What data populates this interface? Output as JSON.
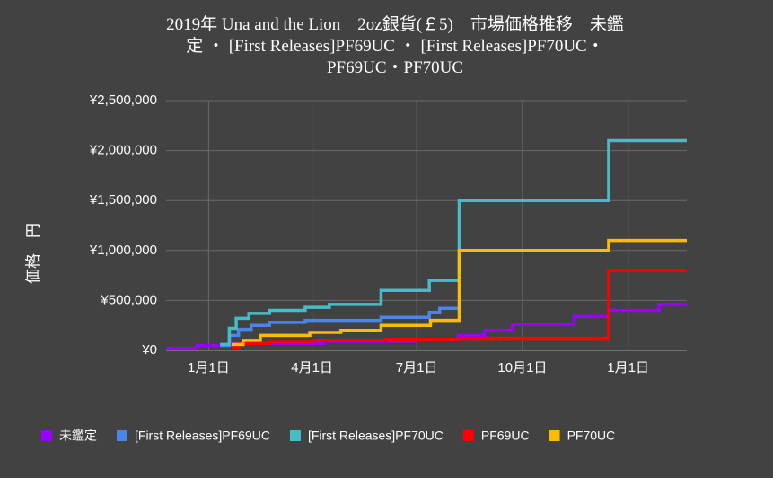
{
  "chart_data": {
    "type": "line",
    "step": true,
    "title": "2019年 Una and the Lion　2oz銀貨(￡5)　市場価格推移　未鑑定 ・ [First Releases]PF69UC ・ [First Releases]PF70UC・PF69UC・PF70UC",
    "y_label": "価格　円",
    "xlim": [
      -37,
      416
    ],
    "xticks": [
      {
        "value": 0,
        "label": "1月1日"
      },
      {
        "value": 90,
        "label": "4月1日"
      },
      {
        "value": 181,
        "label": "7月1日"
      },
      {
        "value": 273,
        "label": "10月1日"
      },
      {
        "value": 365,
        "label": "1月1日"
      }
    ],
    "ylim": [
      0,
      2500000
    ],
    "yticks": [
      {
        "value": 0,
        "label": "¥0"
      },
      {
        "value": 500000,
        "label": "¥500,000"
      },
      {
        "value": 1000000,
        "label": "¥1,000,000"
      },
      {
        "value": 1500000,
        "label": "¥1,500,000"
      },
      {
        "value": 2000000,
        "label": "¥2,000,000"
      },
      {
        "value": 2500000,
        "label": "¥2,500,000"
      }
    ],
    "grid": true,
    "legend": "bottom",
    "series": [
      {
        "name": "未鑑定",
        "color": "#9900ff",
        "x": [
          -37,
          -10,
          20,
          100,
          180,
          217,
          240,
          264,
          318,
          348,
          392,
          416
        ],
        "values": [
          20000,
          50000,
          70000,
          90000,
          110000,
          150000,
          200000,
          260000,
          340000,
          400000,
          460000,
          460000
        ]
      },
      {
        "name": "[First Releases]PF69UC",
        "color": "#4a86e8",
        "x": [
          10,
          18,
          26,
          37,
          53,
          84,
          150,
          192,
          201,
          217
        ],
        "values": [
          50000,
          150000,
          210000,
          250000,
          280000,
          300000,
          330000,
          380000,
          420000,
          420000
        ]
      },
      {
        "name": "[First Releases]PF70UC",
        "color": "#46bdc6",
        "x": [
          10,
          18,
          24,
          35,
          53,
          84,
          105,
          150,
          192,
          218,
          348,
          416
        ],
        "values": [
          60000,
          220000,
          320000,
          370000,
          400000,
          430000,
          460000,
          600000,
          700000,
          1500000,
          2100000,
          2100000
        ]
      },
      {
        "name": "PF69UC",
        "color": "#ff0000",
        "x": [
          20,
          26,
          53,
          92,
          155,
          218,
          348,
          416
        ],
        "values": [
          30000,
          70000,
          90000,
          100000,
          110000,
          120000,
          800000,
          800000
        ]
      },
      {
        "name": "PF70UC",
        "color": "#fbbc04",
        "x": [
          20,
          30,
          45,
          88,
          115,
          150,
          193,
          218,
          348,
          416
        ],
        "values": [
          60000,
          100000,
          150000,
          180000,
          200000,
          250000,
          300000,
          1000000,
          1100000,
          1100000
        ]
      }
    ]
  }
}
